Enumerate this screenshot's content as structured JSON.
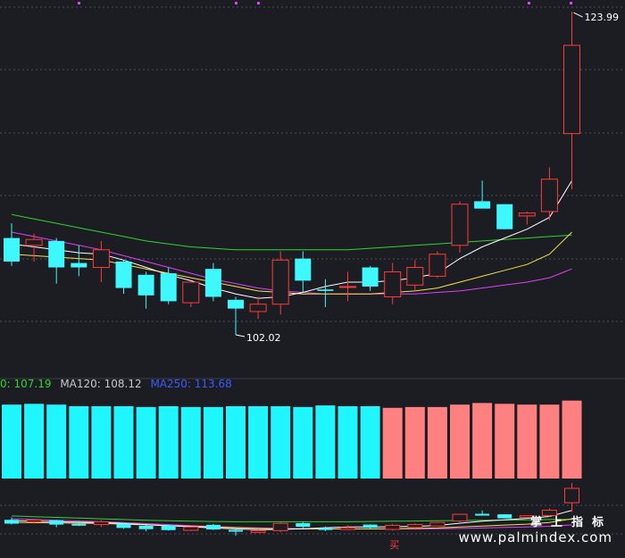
{
  "colors": {
    "background": "#1b1d22",
    "up": "#ff3b3b",
    "down": "#3ef7ff",
    "ma_short": "#ffffff",
    "ma_mid": "#f5e14a",
    "ma_long": "#e040fb",
    "ma_longer": "#2fd52f",
    "bar_down": "#1ff6ff",
    "bar_up": "#ff8080",
    "grid": "#4a4f5a"
  },
  "legend": {
    "ma_a_label": "0: 107.19",
    "ma_b_label": "MA120: 108.12",
    "ma_c_label": "MA250: 113.68"
  },
  "annotations": {
    "high_label": "123.99",
    "low_label": "102.02",
    "buy_label": "买"
  },
  "watermark": {
    "cn": "掌上指标",
    "url": "www.palmindex.com"
  },
  "chart_data": {
    "type": "candlestick",
    "price_range": [
      100.5,
      124.3
    ],
    "candles": [
      {
        "o": 108.6,
        "h": 109.6,
        "l": 106.7,
        "c": 107.0
      },
      {
        "o": 108.1,
        "h": 108.9,
        "l": 107.0,
        "c": 108.5
      },
      {
        "o": 108.4,
        "h": 108.6,
        "l": 105.5,
        "c": 106.6
      },
      {
        "o": 106.9,
        "h": 108.1,
        "l": 106.0,
        "c": 106.6
      },
      {
        "o": 106.6,
        "h": 108.4,
        "l": 105.6,
        "c": 107.8
      },
      {
        "o": 107.0,
        "h": 107.1,
        "l": 104.8,
        "c": 105.2
      },
      {
        "o": 106.1,
        "h": 106.3,
        "l": 103.8,
        "c": 104.7
      },
      {
        "o": 106.2,
        "h": 106.6,
        "l": 104.1,
        "c": 104.3
      },
      {
        "o": 104.2,
        "h": 105.6,
        "l": 103.9,
        "c": 105.6
      },
      {
        "o": 106.5,
        "h": 106.9,
        "l": 104.3,
        "c": 104.6
      },
      {
        "o": 104.4,
        "h": 104.6,
        "l": 102.02,
        "c": 103.8
      },
      {
        "o": 103.6,
        "h": 104.6,
        "l": 103.1,
        "c": 104.1
      },
      {
        "o": 104.1,
        "h": 107.7,
        "l": 103.4,
        "c": 107.1
      },
      {
        "o": 107.2,
        "h": 107.7,
        "l": 104.9,
        "c": 105.7
      },
      {
        "o": 105.1,
        "h": 105.8,
        "l": 103.9,
        "c": 105.0
      },
      {
        "o": 105.3,
        "h": 106.3,
        "l": 104.3,
        "c": 105.3
      },
      {
        "o": 106.6,
        "h": 106.7,
        "l": 105.0,
        "c": 105.3
      },
      {
        "o": 104.6,
        "h": 106.9,
        "l": 104.1,
        "c": 106.3
      },
      {
        "o": 105.4,
        "h": 107.1,
        "l": 105.0,
        "c": 106.6
      },
      {
        "o": 106.0,
        "h": 107.7,
        "l": 105.9,
        "c": 107.5
      },
      {
        "o": 108.1,
        "h": 111.1,
        "l": 107.6,
        "c": 110.9
      },
      {
        "o": 111.1,
        "h": 112.5,
        "l": 110.7,
        "c": 110.6
      },
      {
        "o": 110.9,
        "h": 110.9,
        "l": 109.2,
        "c": 109.2
      },
      {
        "o": 110.1,
        "h": 110.4,
        "l": 109.5,
        "c": 110.3
      },
      {
        "o": 110.4,
        "h": 113.4,
        "l": 109.8,
        "c": 112.6
      },
      {
        "o": 115.7,
        "h": 123.99,
        "l": 111.9,
        "c": 121.7
      }
    ],
    "ma_short": [
      108.2,
      108.0,
      107.8,
      107.6,
      107.5,
      107.1,
      106.6,
      106.1,
      105.7,
      105.2,
      104.8,
      104.5,
      104.6,
      104.9,
      105.3,
      105.6,
      105.6,
      105.7,
      105.9,
      106.2,
      107.2,
      108.0,
      108.6,
      109.2,
      110.0,
      112.5
    ],
    "ma_mid": [
      107.5,
      107.4,
      107.3,
      107.2,
      107.1,
      106.8,
      106.5,
      106.2,
      105.9,
      105.6,
      105.3,
      105.0,
      104.9,
      104.8,
      104.8,
      104.8,
      104.8,
      104.9,
      105.0,
      105.2,
      105.6,
      106.0,
      106.4,
      106.8,
      107.5,
      109.0
    ],
    "ma_long": [
      109.0,
      108.7,
      108.4,
      108.1,
      107.8,
      107.4,
      107.0,
      106.6,
      106.2,
      105.8,
      105.5,
      105.2,
      105.0,
      104.9,
      104.8,
      104.8,
      104.8,
      104.8,
      104.8,
      104.9,
      105.0,
      105.2,
      105.4,
      105.6,
      105.9,
      106.5
    ],
    "ma_longer": [
      110.2,
      109.9,
      109.6,
      109.3,
      109.0,
      108.7,
      108.4,
      108.2,
      108.0,
      107.9,
      107.8,
      107.8,
      107.8,
      107.8,
      107.8,
      107.8,
      107.9,
      108.0,
      108.1,
      108.2,
      108.3,
      108.4,
      108.5,
      108.6,
      108.7,
      108.8
    ],
    "lower_bars": {
      "series": [
        {
          "name": "down",
          "values": [
            0.92,
            0.93,
            0.92,
            0.9,
            0.9,
            0.9,
            0.89,
            0.9,
            0.89,
            0.89,
            0.9,
            0.9,
            0.9,
            0.89,
            0.91,
            0.9,
            0.9
          ]
        },
        {
          "name": "up",
          "values": [
            0.0,
            0.0,
            0.0,
            0.0,
            0.0,
            0.0,
            0.0,
            0.0,
            0.0,
            0.0,
            0.0,
            0.0,
            0.0,
            0.0,
            0.0,
            0.0,
            0.0,
            0.88,
            0.89,
            0.89,
            0.92,
            0.94,
            0.93,
            0.92,
            0.92,
            0.97
          ]
        }
      ]
    }
  }
}
